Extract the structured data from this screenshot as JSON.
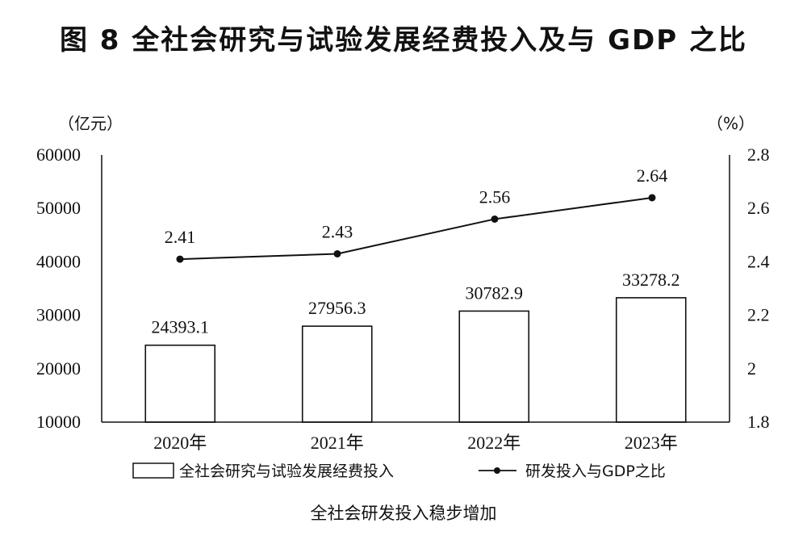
{
  "title": "图 8    全社会研究与试验发展经费投入及与 GDP 之比",
  "caption": "全社会研发投入稳步增加",
  "left_unit": "（亿元）",
  "right_unit": "（%）",
  "chart_data": {
    "type": "bar",
    "categories": [
      "2020年",
      "2021年",
      "2022年",
      "2023年"
    ],
    "series": [
      {
        "name": "全社会研究与试验发展经费投入",
        "type": "bar",
        "axis": "left",
        "values": [
          24393.1,
          27956.3,
          30782.9,
          33278.2
        ],
        "labels": [
          "24393.1",
          "27956.3",
          "30782.9",
          "33278.2"
        ]
      },
      {
        "name": "研发投入与GDP之比",
        "type": "line",
        "axis": "right",
        "values": [
          2.41,
          2.43,
          2.56,
          2.64
        ],
        "labels": [
          "2.41",
          "2.43",
          "2.56",
          "2.64"
        ]
      }
    ],
    "left_axis": {
      "min": 10000,
      "max": 60000,
      "ticks": [
        "10000",
        "20000",
        "30000",
        "40000",
        "50000",
        "60000"
      ]
    },
    "right_axis": {
      "min": 1.8,
      "max": 2.8,
      "ticks": [
        "1.8",
        "2",
        "2.2",
        "2.4",
        "2.6",
        "2.8"
      ]
    },
    "grid": false,
    "legend": "bottom"
  }
}
